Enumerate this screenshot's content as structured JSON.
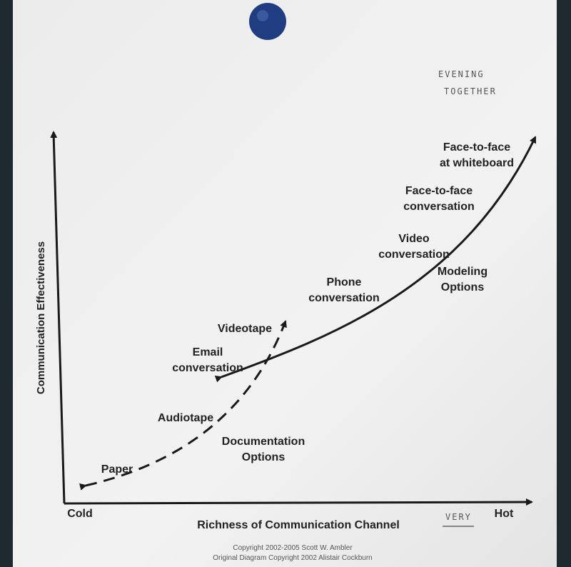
{
  "axes": {
    "y_label": "Communication Effectiveness",
    "x_label": "Richness of Communication Channel",
    "x_start": "Cold",
    "x_end": "Hot"
  },
  "labels": [
    {
      "lines": [
        "Face-to-face",
        "at whiteboard"
      ]
    },
    {
      "lines": [
        "Face-to-face",
        "conversation"
      ]
    },
    {
      "lines": [
        "Video",
        "conversation"
      ]
    },
    {
      "lines": [
        "Modeling",
        "Options"
      ]
    },
    {
      "lines": [
        "Phone",
        "conversation"
      ]
    },
    {
      "lines": [
        "Videotape"
      ]
    },
    {
      "lines": [
        "Email",
        "conversation"
      ]
    },
    {
      "lines": [
        "Audiotape"
      ]
    },
    {
      "lines": [
        "Documentation",
        "Options"
      ]
    },
    {
      "lines": [
        "Paper"
      ]
    }
  ],
  "handwritten": {
    "top_right": [
      "EVENING",
      "TOGETHER"
    ],
    "near_hot": "VERY"
  },
  "footer": [
    "Copyright 2002-2005 Scott W. Ambler",
    "Original Diagram Copyright 2002 Alistair Cockburn"
  ]
}
